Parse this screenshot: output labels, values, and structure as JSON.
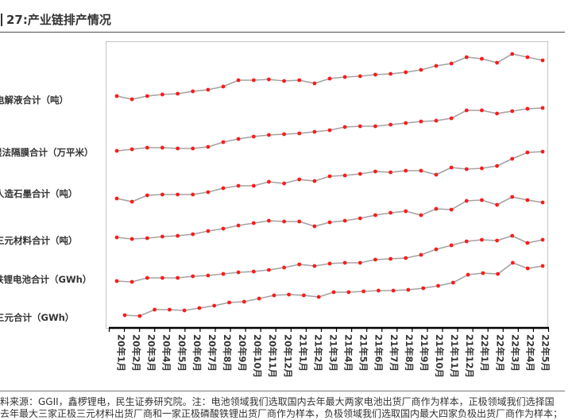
{
  "title": "27:产业链排产情况",
  "chart_data": {
    "type": "line",
    "title": "",
    "xlabel": "",
    "ylabel": "",
    "grid": false,
    "legend": "left",
    "line_color": "#a3a3a3",
    "marker_color": "#ff1a1a",
    "frame_color": "#c4c4c4",
    "axis_color": "#000000",
    "categories": [
      "20年1月",
      "20年2月",
      "20年3月",
      "20年4月",
      "20年5月",
      "20年6月",
      "20年7月",
      "20年8月",
      "20年9月",
      "20年10月",
      "20年11月",
      "20年12月",
      "21年1月",
      "21年2月",
      "21年3月",
      "21年4月",
      "21年5月",
      "21年6月",
      "21年7月",
      "21年8月",
      "21年9月",
      "21年10月",
      "21年11月",
      "21年12月",
      "22年1月",
      "22年2月",
      "22年3月",
      "22年4月",
      "22年5月"
    ],
    "series": [
      {
        "name": "电解液合计（吨）",
        "values": [
          100,
          96,
          100,
          102,
          103,
          106,
          108,
          112,
          120,
          120,
          121,
          119,
          120,
          116,
          122,
          124,
          125,
          127,
          128,
          130,
          133,
          138,
          141,
          149,
          147,
          142,
          153,
          149,
          145
        ]
      },
      {
        "name": "湿法隔膜合计（万平米）",
        "values": [
          100,
          102,
          104,
          104,
          103,
          103,
          105,
          111,
          115,
          118,
          120,
          121,
          122,
          124,
          126,
          130,
          131,
          131,
          133,
          135,
          137,
          138,
          141,
          151,
          151,
          147,
          150,
          153,
          154
        ]
      },
      {
        "name": "人造石墨合计（吨）",
        "values": [
          100,
          96,
          104,
          105,
          105,
          105,
          108,
          113,
          116,
          116,
          121,
          119,
          124,
          122,
          128,
          129,
          131,
          134,
          133,
          135,
          135,
          130,
          139,
          137,
          138,
          141,
          150,
          158,
          159
        ]
      },
      {
        "name": "三元材料合计（吨）",
        "values": [
          100,
          98,
          99,
          101,
          102,
          104,
          108,
          111,
          115,
          118,
          121,
          120,
          120,
          114,
          119,
          121,
          124,
          128,
          131,
          133,
          128,
          136,
          135,
          146,
          147,
          141,
          151,
          147,
          144
        ]
      },
      {
        "name": "铁锂电池合计（GWh）",
        "values": [
          100,
          99,
          104,
          104,
          104,
          106,
          107,
          109,
          111,
          112,
          114,
          117,
          121,
          119,
          122,
          123,
          123,
          127,
          128,
          129,
          133,
          140,
          145,
          150,
          152,
          151,
          157,
          148,
          152
        ]
      },
      {
        "name": "三元合计（GWh）",
        "values": [
          100,
          99,
          107,
          107,
          106,
          109,
          112,
          116,
          117,
          121,
          125,
          126,
          125,
          123,
          129,
          129,
          130,
          131,
          131,
          132,
          134,
          137,
          141,
          151,
          153,
          152,
          166,
          159,
          162
        ]
      }
    ]
  },
  "footer": {
    "line1": "料来源：GGII，鑫椤锂电，民生证券研究院。注：电池领域我们选取国内去年最大两家电池出货厂商作为样本，正极领域我们选择国",
    "line2": "去年最大三家正极三元材料出货厂商和一家正极磷酸铁锂出货厂商作为样本，负极领域我们选取国内最大四家负极出货厂商作为样本；"
  }
}
